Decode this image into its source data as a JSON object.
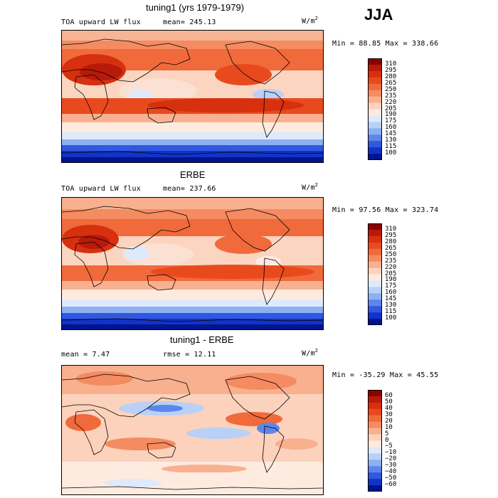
{
  "season": "JJA",
  "panels": [
    {
      "id": "model",
      "title": "tuning1 (yrs 1979-1979)",
      "variable": "TOA upward LW flux",
      "stat_left": "mean= 245.13",
      "stat_right": "",
      "units_base": "W/m",
      "units_exp": "2",
      "minmax": "Min =  88.85 Max = 338.66"
    },
    {
      "id": "obs",
      "title": "ERBE",
      "variable": "TOA upward LW flux",
      "stat_left": "mean= 237.66",
      "stat_right": "",
      "units_base": "W/m",
      "units_exp": "2",
      "minmax": "Min =  97.56 Max = 323.74"
    },
    {
      "id": "diff",
      "title": "tuning1 - ERBE",
      "variable": "mean =   7.47",
      "stat_left": "rmse =  12.11",
      "stat_right": "",
      "units_base": "W/m",
      "units_exp": "2",
      "minmax": "Min = -35.29 Max =  45.55"
    }
  ],
  "colorbars": [
    {
      "levels": [
        "310",
        "295",
        "280",
        "265",
        "250",
        "235",
        "220",
        "205",
        "190",
        "175",
        "160",
        "145",
        "130",
        "115",
        "100"
      ],
      "colors": [
        "#8b0000",
        "#b81a0a",
        "#d6300f",
        "#e84a1e",
        "#f06a3c",
        "#f58b60",
        "#f9b08f",
        "#fcd2bc",
        "#fdebe0",
        "#dfe9fb",
        "#b9d0f8",
        "#8db0f3",
        "#5d86ea",
        "#3158de",
        "#1133c8",
        "#00148e"
      ]
    },
    {
      "levels": [
        "310",
        "295",
        "280",
        "265",
        "250",
        "235",
        "220",
        "205",
        "190",
        "175",
        "160",
        "145",
        "130",
        "115",
        "100"
      ],
      "colors": [
        "#8b0000",
        "#b81a0a",
        "#d6300f",
        "#e84a1e",
        "#f06a3c",
        "#f58b60",
        "#f9b08f",
        "#fcd2bc",
        "#fdebe0",
        "#dfe9fb",
        "#b9d0f8",
        "#8db0f3",
        "#5d86ea",
        "#3158de",
        "#1133c8",
        "#00148e"
      ]
    },
    {
      "levels": [
        "60",
        "50",
        "40",
        "30",
        "20",
        "10",
        "5",
        "0",
        "−5",
        "−10",
        "−20",
        "−30",
        "−40",
        "−50",
        "−60"
      ],
      "colors": [
        "#8b0000",
        "#b81a0a",
        "#d6300f",
        "#e84a1e",
        "#f06a3c",
        "#f58b60",
        "#f9b08f",
        "#fcd2bc",
        "#fdebe0",
        "#dfe9fb",
        "#b9d0f8",
        "#8db0f3",
        "#5d86ea",
        "#3158de",
        "#1133c8",
        "#00148e"
      ]
    }
  ],
  "chart_data": [
    {
      "type": "heatmap",
      "title": "tuning1 (yrs 1979-1979)",
      "subtitle": "TOA upward LW flux",
      "units": "W/m2",
      "mean": 245.13,
      "min": 88.85,
      "max": 338.66,
      "contour_levels": [
        100,
        115,
        130,
        145,
        160,
        175,
        190,
        205,
        220,
        235,
        250,
        265,
        280,
        295,
        310
      ]
    },
    {
      "type": "heatmap",
      "title": "ERBE",
      "subtitle": "TOA upward LW flux",
      "units": "W/m2",
      "mean": 237.66,
      "min": 97.56,
      "max": 323.74,
      "contour_levels": [
        100,
        115,
        130,
        145,
        160,
        175,
        190,
        205,
        220,
        235,
        250,
        265,
        280,
        295,
        310
      ]
    },
    {
      "type": "heatmap",
      "title": "tuning1 - ERBE",
      "units": "W/m2",
      "mean": 7.47,
      "rmse": 12.11,
      "min": -35.29,
      "max": 45.55,
      "contour_levels": [
        -60,
        -50,
        -40,
        -30,
        -20,
        -10,
        -5,
        0,
        5,
        10,
        20,
        30,
        40,
        50,
        60
      ]
    }
  ]
}
